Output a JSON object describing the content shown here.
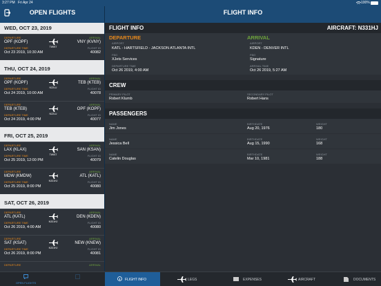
{
  "status_bar": {
    "time": "3:27 PM",
    "date": "Fri Apr 24",
    "battery": "100%"
  },
  "sidebar": {
    "title": "OPEN FLIGHTS",
    "labels": {
      "departure": "DEPARTURE",
      "departure_time": "DEPARTURE TIME",
      "arrival": "ARRIVAL",
      "flight_id": "FLIGHT ID"
    },
    "groups": [
      {
        "date": "WED, OCT 23, 2019",
        "flights": [
          {
            "from": "OPF (KOPF)",
            "to": "VNY (KVNY)",
            "aircraft": "TWIST",
            "time": "Oct 23 2019, 10:30 AM",
            "flight_id": "40082"
          }
        ]
      },
      {
        "date": "THU, OCT 24, 2019",
        "flights": [
          {
            "from": "OPF (KOPF)",
            "to": "TEB (KTEB)",
            "aircraft": "N22LU",
            "time": "Oct 24 2019, 10:00 AM",
            "flight_id": "40078"
          },
          {
            "from": "TEB (KTEB)",
            "to": "OPF (KOPF)",
            "aircraft": "N22LU",
            "time": "Oct 24 2019, 4:00 PM",
            "flight_id": "40077"
          }
        ]
      },
      {
        "date": "FRI, OCT 25, 2019",
        "flights": [
          {
            "from": "LAX (KLAX)",
            "to": "SAN (KSAN)",
            "aircraft": "TWIST",
            "time": "Oct 25 2019, 12:00 PM",
            "flight_id": "40079"
          },
          {
            "from": "MDW (KMDW)",
            "to": "ATL (KATL)",
            "aircraft": "N331HJ",
            "time": "Oct 25 2019, 8:00 PM",
            "flight_id": "40080"
          }
        ]
      },
      {
        "date": "SAT, OCT 26, 2019",
        "flights": [
          {
            "from": "ATL (KATL)",
            "to": "DEN (KDEN)",
            "aircraft": "N331HJ",
            "time": "Oct 26 2019, 4:00 AM",
            "flight_id": "40080"
          },
          {
            "from": "SAT (KSAT)",
            "to": "NEW (KNEW)",
            "aircraft": "N331HJ",
            "time": "Oct 26 2019, 8:00 PM",
            "flight_id": "40081"
          }
        ]
      }
    ]
  },
  "detail": {
    "title": "FLIGHT INFO",
    "flight_info": {
      "heading": "FLIGHT INFO",
      "aircraft": "AIRCRAFT: N331HJ",
      "departure": {
        "heading": "DEPARTURE",
        "airport_label": "AIRPORT",
        "airport": "KATL - HARTSFIELD - JACKSON ATLANTA INTL",
        "fbo_label": "FBO",
        "fbo": "XJets Services",
        "time_label": "DEPARTURE TIME",
        "time": "Oct 26 2019, 4:00 AM"
      },
      "arrival": {
        "heading": "ARRIVAL",
        "airport_label": "AIRPORT",
        "airport": "KDEN - DENVER INTL",
        "fbo_label": "FBO",
        "fbo": "Signature",
        "time_label": "ARRIVAL TIME",
        "time": "Oct 26 2019, 5:27 AM"
      }
    },
    "crew": {
      "heading": "CREW",
      "primary_label": "PRIMARY PILOT",
      "primary": "Robert Klumb",
      "secondary_label": "SECONDARY PILOT",
      "secondary": "Robert Hans"
    },
    "passengers": {
      "heading": "PASSENGERS",
      "columns": [
        "NAME",
        "BIRTHDATE",
        "WEIGHT"
      ],
      "rows": [
        [
          "Jim Jones",
          "Aug 20, 1976",
          "180"
        ],
        [
          "Jessica Bell",
          "Aug 15, 1990",
          "168"
        ],
        [
          "Catelin Douglas",
          "Mar 10, 1981",
          "188"
        ]
      ]
    }
  },
  "tabs": {
    "sidebar": [
      "OPEN FLIGHTS"
    ],
    "detail": [
      "FLIGHT INFO",
      "LEGS",
      "EXPENSES",
      "AIRCRAFT",
      "DOCUMENTS"
    ]
  }
}
